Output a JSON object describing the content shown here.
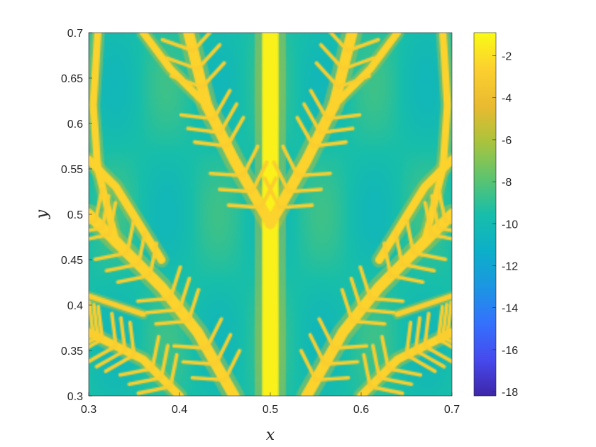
{
  "chart_data": {
    "type": "heatmap",
    "title": "",
    "xlabel": "x",
    "ylabel": "y",
    "xlim": [
      0.3,
      0.7
    ],
    "ylim": [
      0.3,
      0.7
    ],
    "x_ticks": [
      0.3,
      0.4,
      0.5,
      0.6,
      0.7
    ],
    "x_tick_labels": [
      "0.3",
      "0.4",
      "0.5",
      "0.6",
      "0.7"
    ],
    "y_ticks": [
      0.3,
      0.35,
      0.4,
      0.45,
      0.5,
      0.55,
      0.6,
      0.65,
      0.7
    ],
    "y_tick_labels": [
      "0.3",
      "0.35",
      "0.4",
      "0.45",
      "0.5",
      "0.55",
      "0.6",
      "0.65",
      "0.7"
    ],
    "colormap": "parula",
    "colorbar": {
      "clim": [
        -18.2,
        -0.9
      ],
      "ticks": [
        -2,
        -4,
        -6,
        -8,
        -10,
        -12,
        -14,
        -16,
        -18
      ],
      "tick_labels": [
        "-2",
        "-4",
        "-6",
        "-8",
        "-10",
        "-12",
        "-14",
        "-16",
        "-18"
      ]
    },
    "field_values": {
      "background": -9.5,
      "dendrite": -2.5,
      "dendrite_core": -1.3
    },
    "description_of_structure": "symmetric dendritic crystal: central trunk at x=0.5 with diagonal primary arms and many side branches",
    "branches": [
      {
        "points": [
          [
            0.5,
            0.3
          ],
          [
            0.5,
            0.5
          ],
          [
            0.5,
            0.7
          ]
        ],
        "value": -1.3,
        "width": 0.018
      },
      {
        "points": [
          [
            0.5,
            0.49
          ],
          [
            0.46,
            0.56
          ],
          [
            0.43,
            0.62
          ],
          [
            0.41,
            0.7
          ]
        ],
        "value": -2.5,
        "width": 0.012
      },
      {
        "points": [
          [
            0.5,
            0.49
          ],
          [
            0.54,
            0.56
          ],
          [
            0.57,
            0.62
          ],
          [
            0.59,
            0.7
          ]
        ],
        "value": -2.5,
        "width": 0.012
      },
      {
        "points": [
          [
            0.46,
            0.3
          ],
          [
            0.42,
            0.37
          ],
          [
            0.38,
            0.42
          ],
          [
            0.33,
            0.47
          ],
          [
            0.3,
            0.5
          ]
        ],
        "value": -2.5,
        "width": 0.012
      },
      {
        "points": [
          [
            0.54,
            0.3
          ],
          [
            0.58,
            0.37
          ],
          [
            0.62,
            0.42
          ],
          [
            0.67,
            0.47
          ],
          [
            0.7,
            0.5
          ]
        ],
        "value": -2.5,
        "width": 0.012
      },
      {
        "points": [
          [
            0.4,
            0.3
          ],
          [
            0.36,
            0.34
          ],
          [
            0.32,
            0.36
          ],
          [
            0.3,
            0.37
          ]
        ],
        "value": -2.5,
        "width": 0.009
      },
      {
        "points": [
          [
            0.6,
            0.3
          ],
          [
            0.64,
            0.34
          ],
          [
            0.68,
            0.36
          ],
          [
            0.7,
            0.37
          ]
        ],
        "value": -2.5,
        "width": 0.009
      },
      {
        "points": [
          [
            0.38,
            0.45
          ],
          [
            0.33,
            0.53
          ],
          [
            0.3,
            0.56
          ]
        ],
        "value": -2.5,
        "width": 0.009
      },
      {
        "points": [
          [
            0.62,
            0.45
          ],
          [
            0.67,
            0.53
          ],
          [
            0.7,
            0.56
          ]
        ],
        "value": -2.5,
        "width": 0.009
      },
      {
        "points": [
          [
            0.43,
            0.62
          ],
          [
            0.39,
            0.66
          ],
          [
            0.36,
            0.7
          ]
        ],
        "value": -2.5,
        "width": 0.008
      },
      {
        "points": [
          [
            0.57,
            0.62
          ],
          [
            0.61,
            0.66
          ],
          [
            0.64,
            0.7
          ]
        ],
        "value": -2.5,
        "width": 0.008
      },
      {
        "points": [
          [
            0.33,
            0.47
          ],
          [
            0.31,
            0.55
          ],
          [
            0.305,
            0.62
          ],
          [
            0.31,
            0.7
          ]
        ],
        "value": -2.5,
        "width": 0.008
      },
      {
        "points": [
          [
            0.67,
            0.47
          ],
          [
            0.69,
            0.55
          ],
          [
            0.695,
            0.62
          ],
          [
            0.69,
            0.7
          ]
        ],
        "value": -2.5,
        "width": 0.008
      },
      {
        "points": [
          [
            0.3,
            0.41
          ],
          [
            0.33,
            0.4
          ],
          [
            0.36,
            0.39
          ]
        ],
        "value": -2.8,
        "width": 0.006
      },
      {
        "points": [
          [
            0.7,
            0.41
          ],
          [
            0.67,
            0.4
          ],
          [
            0.64,
            0.39
          ]
        ],
        "value": -2.8,
        "width": 0.006
      }
    ]
  }
}
